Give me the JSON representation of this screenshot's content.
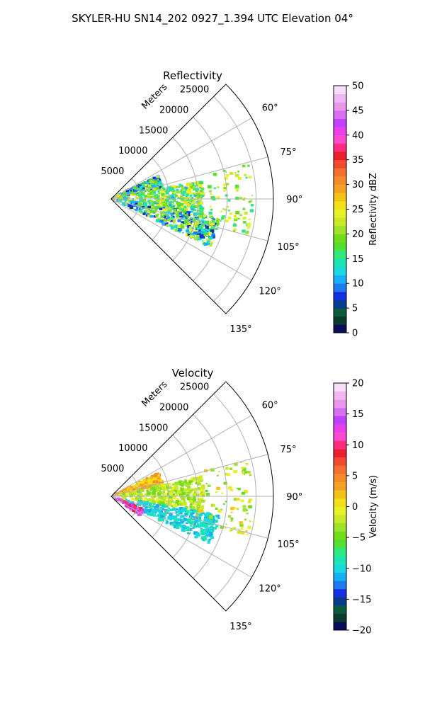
{
  "figure": {
    "title": "SKYLER-HU  SN14_202  0927_1.394 UTC Elevation 04°"
  },
  "chart_data": [
    {
      "type": "heatmap",
      "kind": "polar-sector",
      "title": "Reflectivity",
      "radial_axis_label": "Meters",
      "radial_ticks": [
        "5000",
        "10000",
        "15000",
        "20000",
        "25000"
      ],
      "radial_values": [
        5000,
        10000,
        15000,
        20000,
        25000
      ],
      "rmax": 28000,
      "angle_range_deg": [
        45,
        135
      ],
      "angle_ticks": [
        "60°",
        "75°",
        "90°",
        "105°",
        "120°",
        "135°"
      ],
      "angle_values": [
        60,
        75,
        90,
        105,
        120,
        135
      ],
      "grid": true,
      "colorbar": {
        "label": "Reflectivity dBZ",
        "ticks": [
          "0",
          "5",
          "10",
          "15",
          "20",
          "25",
          "30",
          "35",
          "40",
          "45",
          "50"
        ],
        "tick_values": [
          0,
          5,
          10,
          15,
          20,
          25,
          30,
          35,
          40,
          45,
          50
        ],
        "range": [
          0,
          50
        ],
        "colors": [
          "#0b0b5e",
          "#0b3a2e",
          "#0b5a3a",
          "#083e8f",
          "#1530e0",
          "#1f7af0",
          "#17b0f5",
          "#18d8e0",
          "#1de5b0",
          "#30e880",
          "#54e030",
          "#72dc1a",
          "#9ee22a",
          "#c8e828",
          "#e8f028",
          "#f4e018",
          "#f4c318",
          "#f4a020",
          "#f48b2a",
          "#f46f30",
          "#f04a30",
          "#ee2030",
          "#ff2d7c",
          "#ff4ad0",
          "#ea40ea",
          "#c040ff",
          "#d870ee",
          "#e898e8",
          "#f0b8f0",
          "#f8dcf8"
        ]
      },
      "echo_features": [
        {
          "feature": "upper band",
          "az_range": [
            64,
            78
          ],
          "range_m": [
            0,
            9000
          ],
          "value_range": [
            5,
            25
          ]
        },
        {
          "feature": "central band",
          "az_range": [
            78,
            100
          ],
          "range_m": [
            0,
            16000
          ],
          "value_range": [
            10,
            27
          ]
        },
        {
          "feature": "lower band",
          "az_range": [
            100,
            116
          ],
          "range_m": [
            0,
            19000
          ],
          "value_range": [
            5,
            25
          ]
        },
        {
          "feature": "far echoes",
          "az_range": [
            75,
            106
          ],
          "range_m": [
            15000,
            24500
          ],
          "value_range": [
            15,
            25
          ]
        }
      ]
    },
    {
      "type": "heatmap",
      "kind": "polar-sector",
      "title": "Velocity",
      "radial_axis_label": "Meters",
      "radial_ticks": [
        "5000",
        "10000",
        "15000",
        "20000",
        "25000"
      ],
      "radial_values": [
        5000,
        10000,
        15000,
        20000,
        25000
      ],
      "rmax": 28000,
      "angle_range_deg": [
        45,
        135
      ],
      "angle_ticks": [
        "60°",
        "75°",
        "90°",
        "105°",
        "120°",
        "135°"
      ],
      "angle_values": [
        60,
        75,
        90,
        105,
        120,
        135
      ],
      "grid": true,
      "colorbar": {
        "label": "Velocity (m/s)",
        "ticks": [
          "−20",
          "−15",
          "−10",
          "−5",
          "0",
          "5",
          "10",
          "15",
          "20"
        ],
        "tick_values": [
          -20,
          -15,
          -10,
          -5,
          0,
          5,
          10,
          15,
          20
        ],
        "range": [
          -20,
          20
        ],
        "colors": [
          "#0b0b5e",
          "#0b3a2e",
          "#0b5a3a",
          "#083e8f",
          "#1530e0",
          "#1f7af0",
          "#17b0f5",
          "#18d8e0",
          "#1de5b0",
          "#30e880",
          "#54e030",
          "#72dc1a",
          "#9ee22a",
          "#c8e828",
          "#e8f028",
          "#f4e018",
          "#f4c318",
          "#f4a020",
          "#f48b2a",
          "#f46f30",
          "#f04a30",
          "#ee2030",
          "#ff2d7c",
          "#ff4ad0",
          "#ea40ea",
          "#c040ff",
          "#d870ee",
          "#e898e8",
          "#f0b8f0",
          "#f8dcf8"
        ]
      },
      "echo_features": [
        {
          "feature": "upper band",
          "az_range": [
            64,
            78
          ],
          "range_m": [
            0,
            9000
          ],
          "value_range": [
            0,
            5
          ]
        },
        {
          "feature": "central band",
          "az_range": [
            78,
            100
          ],
          "range_m": [
            0,
            16000
          ],
          "value_range": [
            -5,
            0
          ]
        },
        {
          "feature": "lower band",
          "az_range": [
            100,
            116
          ],
          "range_m": [
            0,
            19000
          ],
          "value_range": [
            -12,
            -8
          ]
        },
        {
          "feature": "far echoes",
          "az_range": [
            75,
            106
          ],
          "range_m": [
            15000,
            24500
          ],
          "value_range": [
            -6,
            2
          ]
        },
        {
          "feature": "near lower edge",
          "az_range": [
            112,
            124
          ],
          "range_m": [
            1000,
            6000
          ],
          "value_range": [
            8,
            15
          ]
        }
      ]
    }
  ]
}
